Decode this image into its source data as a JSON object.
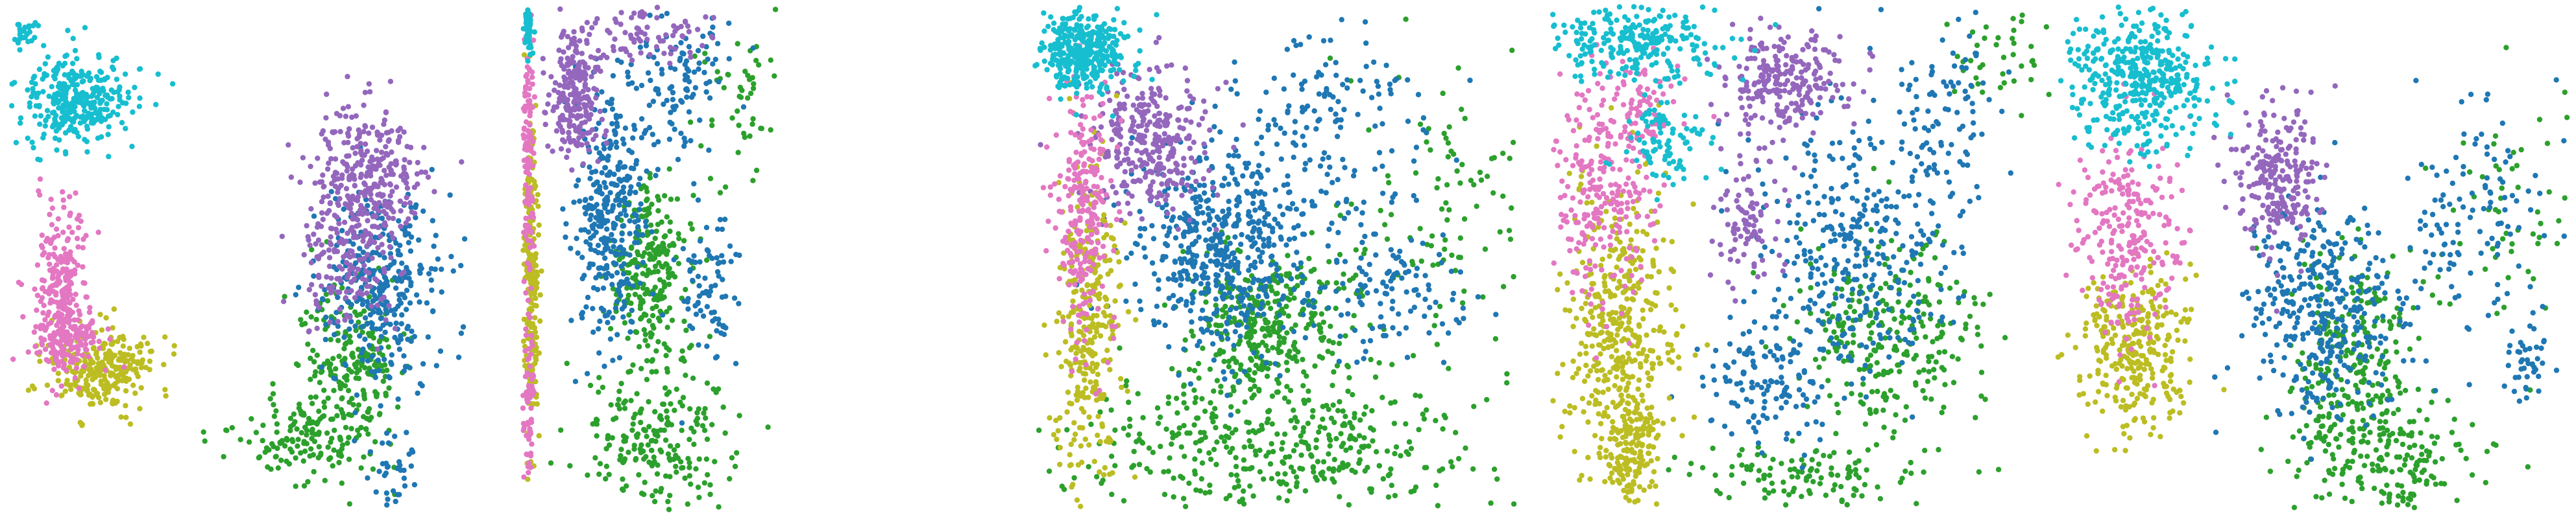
{
  "colors": {
    "c0": "#17becf",
    "c1": "#e377c2",
    "c2": "#bcbd22",
    "c3": "#9467bd",
    "c4": "#1f77b4",
    "c5": "#2ca02c"
  },
  "chart_data": [
    {
      "type": "scatter",
      "title": "",
      "xlabel": "",
      "ylabel": "",
      "xlim": [
        0,
        100
      ],
      "ylim": [
        0,
        100
      ],
      "grid": false,
      "legend": "none",
      "series": [
        {
          "color_key": "c0",
          "clusters": [
            {
              "cx": 14,
              "cy": 81,
              "sx": 5.5,
              "sy": 4.5,
              "n": 340
            },
            {
              "cx": 4,
              "cy": 95,
              "sx": 1.5,
              "sy": 1.5,
              "n": 25
            }
          ]
        },
        {
          "color_key": "c1",
          "clusters": [
            {
              "cx": 11,
              "cy": 44,
              "sx": 3,
              "sy": 9,
              "n": 230
            },
            {
              "cx": 13,
              "cy": 34,
              "sx": 3.5,
              "sy": 3,
              "n": 120
            }
          ]
        },
        {
          "color_key": "c2",
          "clusters": [
            {
              "cx": 20,
              "cy": 28,
              "sx": 5,
              "sy": 4,
              "n": 260
            }
          ]
        },
        {
          "color_key": "c3",
          "clusters": [
            {
              "cx": 73,
              "cy": 66,
              "sx": 6,
              "sy": 7,
              "n": 300
            },
            {
              "cx": 69,
              "cy": 50,
              "sx": 5,
              "sy": 8,
              "n": 150
            }
          ]
        },
        {
          "color_key": "c4",
          "clusters": [
            {
              "cx": 76,
              "cy": 45,
              "sx": 6,
              "sy": 10,
              "n": 330
            },
            {
              "cx": 79,
              "cy": 7,
              "sx": 3,
              "sy": 4,
              "n": 40
            }
          ]
        },
        {
          "color_key": "c5",
          "clusters": [
            {
              "cx": 70,
              "cy": 29,
              "sx": 5,
              "sy": 8,
              "n": 220
            },
            {
              "cx": 60,
              "cy": 14,
              "sx": 7,
              "sy": 4,
              "n": 140
            }
          ]
        }
      ]
    },
    {
      "type": "scatter",
      "title": "",
      "xlabel": "",
      "ylabel": "",
      "xlim": [
        0,
        100
      ],
      "ylim": [
        0,
        100
      ],
      "grid": false,
      "legend": "none",
      "series": [
        {
          "color_key": "c0",
          "clusters": [
            {
              "cx": 2,
              "cy": 96,
              "sx": 1.2,
              "sy": 2.5,
              "n": 45
            }
          ]
        },
        {
          "color_key": "c1",
          "clusters": [
            {
              "cx": 2,
              "cy": 70,
              "sx": 1.2,
              "sy": 14,
              "n": 130
            },
            {
              "cx": 2,
              "cy": 20,
              "sx": 1.2,
              "sy": 10,
              "n": 70
            }
          ]
        },
        {
          "color_key": "c2",
          "clusters": [
            {
              "cx": 3,
              "cy": 45,
              "sx": 1.5,
              "sy": 16,
              "n": 240
            }
          ]
        },
        {
          "color_key": "c3",
          "clusters": [
            {
              "cx": 20,
              "cy": 82,
              "sx": 5,
              "sy": 7,
              "n": 230
            },
            {
              "cx": 50,
              "cy": 95,
              "sx": 12,
              "sy": 3,
              "n": 80
            }
          ]
        },
        {
          "color_key": "c4",
          "clusters": [
            {
              "cx": 34,
              "cy": 58,
              "sx": 7,
              "sy": 12,
              "n": 330
            },
            {
              "cx": 60,
              "cy": 85,
              "sx": 10,
              "sy": 8,
              "n": 120
            },
            {
              "cx": 72,
              "cy": 45,
              "sx": 6,
              "sy": 8,
              "n": 80
            }
          ]
        },
        {
          "color_key": "c5",
          "clusters": [
            {
              "cx": 50,
              "cy": 47,
              "sx": 8,
              "sy": 9,
              "n": 260
            },
            {
              "cx": 52,
              "cy": 15,
              "sx": 14,
              "sy": 8,
              "n": 220
            },
            {
              "cx": 85,
              "cy": 82,
              "sx": 8,
              "sy": 8,
              "n": 50
            }
          ]
        }
      ]
    },
    {
      "type": "scatter",
      "title": "",
      "xlabel": "",
      "ylabel": "",
      "xlim": [
        0,
        100
      ],
      "ylim": [
        0,
        100
      ],
      "grid": false,
      "legend": "none",
      "series": [
        {
          "color_key": "c0",
          "clusters": [
            {
              "cx": 10,
              "cy": 91,
              "sx": 5,
              "sy": 4,
              "n": 380
            }
          ]
        },
        {
          "color_key": "c1",
          "clusters": [
            {
              "cx": 10,
              "cy": 60,
              "sx": 3,
              "sy": 14,
              "n": 250
            }
          ]
        },
        {
          "color_key": "c2",
          "clusters": [
            {
              "cx": 11,
              "cy": 35,
              "sx": 3.5,
              "sy": 16,
              "n": 320
            }
          ]
        },
        {
          "color_key": "c3",
          "clusters": [
            {
              "cx": 24,
              "cy": 73,
              "sx": 6,
              "sy": 7,
              "n": 320
            }
          ]
        },
        {
          "color_key": "c4",
          "clusters": [
            {
              "cx": 38,
              "cy": 52,
              "sx": 9,
              "sy": 10,
              "n": 520
            },
            {
              "cx": 60,
              "cy": 75,
              "sx": 10,
              "sy": 10,
              "n": 160
            },
            {
              "cx": 75,
              "cy": 42,
              "sx": 9,
              "sy": 7,
              "n": 120
            }
          ]
        },
        {
          "color_key": "c5",
          "clusters": [
            {
              "cx": 47,
              "cy": 37,
              "sx": 8,
              "sy": 8,
              "n": 330
            },
            {
              "cx": 50,
              "cy": 13,
              "sx": 20,
              "sy": 8,
              "n": 420
            },
            {
              "cx": 85,
              "cy": 60,
              "sx": 12,
              "sy": 16,
              "n": 120
            }
          ]
        }
      ]
    },
    {
      "type": "scatter",
      "title": "",
      "xlabel": "",
      "ylabel": "",
      "xlim": [
        0,
        100
      ],
      "ylim": [
        0,
        100
      ],
      "grid": false,
      "legend": "none",
      "series": [
        {
          "color_key": "c0",
          "clusters": [
            {
              "cx": 16,
              "cy": 93,
              "sx": 9,
              "sy": 4,
              "n": 260
            },
            {
              "cx": 24,
              "cy": 74,
              "sx": 4,
              "sy": 5,
              "n": 90
            }
          ]
        },
        {
          "color_key": "c1",
          "clusters": [
            {
              "cx": 10,
              "cy": 62,
              "sx": 5,
              "sy": 10,
              "n": 240
            },
            {
              "cx": 18,
              "cy": 80,
              "sx": 5,
              "sy": 4,
              "n": 80
            }
          ]
        },
        {
          "color_key": "c2",
          "clusters": [
            {
              "cx": 14,
              "cy": 36,
              "sx": 5.5,
              "sy": 14,
              "n": 420
            },
            {
              "cx": 16,
              "cy": 12,
              "sx": 3,
              "sy": 5,
              "n": 140
            }
          ]
        },
        {
          "color_key": "c3",
          "clusters": [
            {
              "cx": 46,
              "cy": 85,
              "sx": 6,
              "sy": 5,
              "n": 240
            },
            {
              "cx": 39,
              "cy": 58,
              "sx": 3,
              "sy": 7,
              "n": 90
            }
          ]
        },
        {
          "color_key": "c4",
          "clusters": [
            {
              "cx": 60,
              "cy": 52,
              "sx": 9,
              "sy": 14,
              "n": 340
            },
            {
              "cx": 42,
              "cy": 26,
              "sx": 6,
              "sy": 6,
              "n": 130
            },
            {
              "cx": 78,
              "cy": 78,
              "sx": 5,
              "sy": 10,
              "n": 90
            }
          ]
        },
        {
          "color_key": "c5",
          "clusters": [
            {
              "cx": 66,
              "cy": 34,
              "sx": 9,
              "sy": 10,
              "n": 280
            },
            {
              "cx": 50,
              "cy": 7,
              "sx": 12,
              "sy": 3,
              "n": 110
            },
            {
              "cx": 90,
              "cy": 90,
              "sx": 5,
              "sy": 5,
              "n": 40
            }
          ]
        }
      ]
    },
    {
      "type": "scatter",
      "title": "",
      "xlabel": "",
      "ylabel": "",
      "xlim": [
        0,
        100
      ],
      "ylim": [
        0,
        100
      ],
      "grid": false,
      "legend": "none",
      "series": [
        {
          "color_key": "c0",
          "clusters": [
            {
              "cx": 16,
              "cy": 85,
              "sx": 7,
              "sy": 7,
              "n": 420
            }
          ]
        },
        {
          "color_key": "c1",
          "clusters": [
            {
              "cx": 14,
              "cy": 53,
              "sx": 5,
              "sy": 11,
              "n": 250
            }
          ]
        },
        {
          "color_key": "c2",
          "clusters": [
            {
              "cx": 15,
              "cy": 33,
              "sx": 5,
              "sy": 8,
              "n": 300
            }
          ]
        },
        {
          "color_key": "c3",
          "clusters": [
            {
              "cx": 43,
              "cy": 66,
              "sx": 4,
              "sy": 8,
              "n": 240
            }
          ]
        },
        {
          "color_key": "c4",
          "clusters": [
            {
              "cx": 52,
              "cy": 40,
              "sx": 8,
              "sy": 10,
              "n": 360
            },
            {
              "cx": 80,
              "cy": 58,
              "sx": 8,
              "sy": 12,
              "n": 120
            },
            {
              "cx": 92,
              "cy": 30,
              "sx": 2,
              "sy": 3,
              "n": 40
            }
          ]
        },
        {
          "color_key": "c5",
          "clusters": [
            {
              "cx": 58,
              "cy": 30,
              "sx": 6,
              "sy": 12,
              "n": 240
            },
            {
              "cx": 65,
              "cy": 10,
              "sx": 10,
              "sy": 6,
              "n": 200
            },
            {
              "cx": 88,
              "cy": 60,
              "sx": 8,
              "sy": 14,
              "n": 60
            }
          ]
        }
      ]
    }
  ]
}
